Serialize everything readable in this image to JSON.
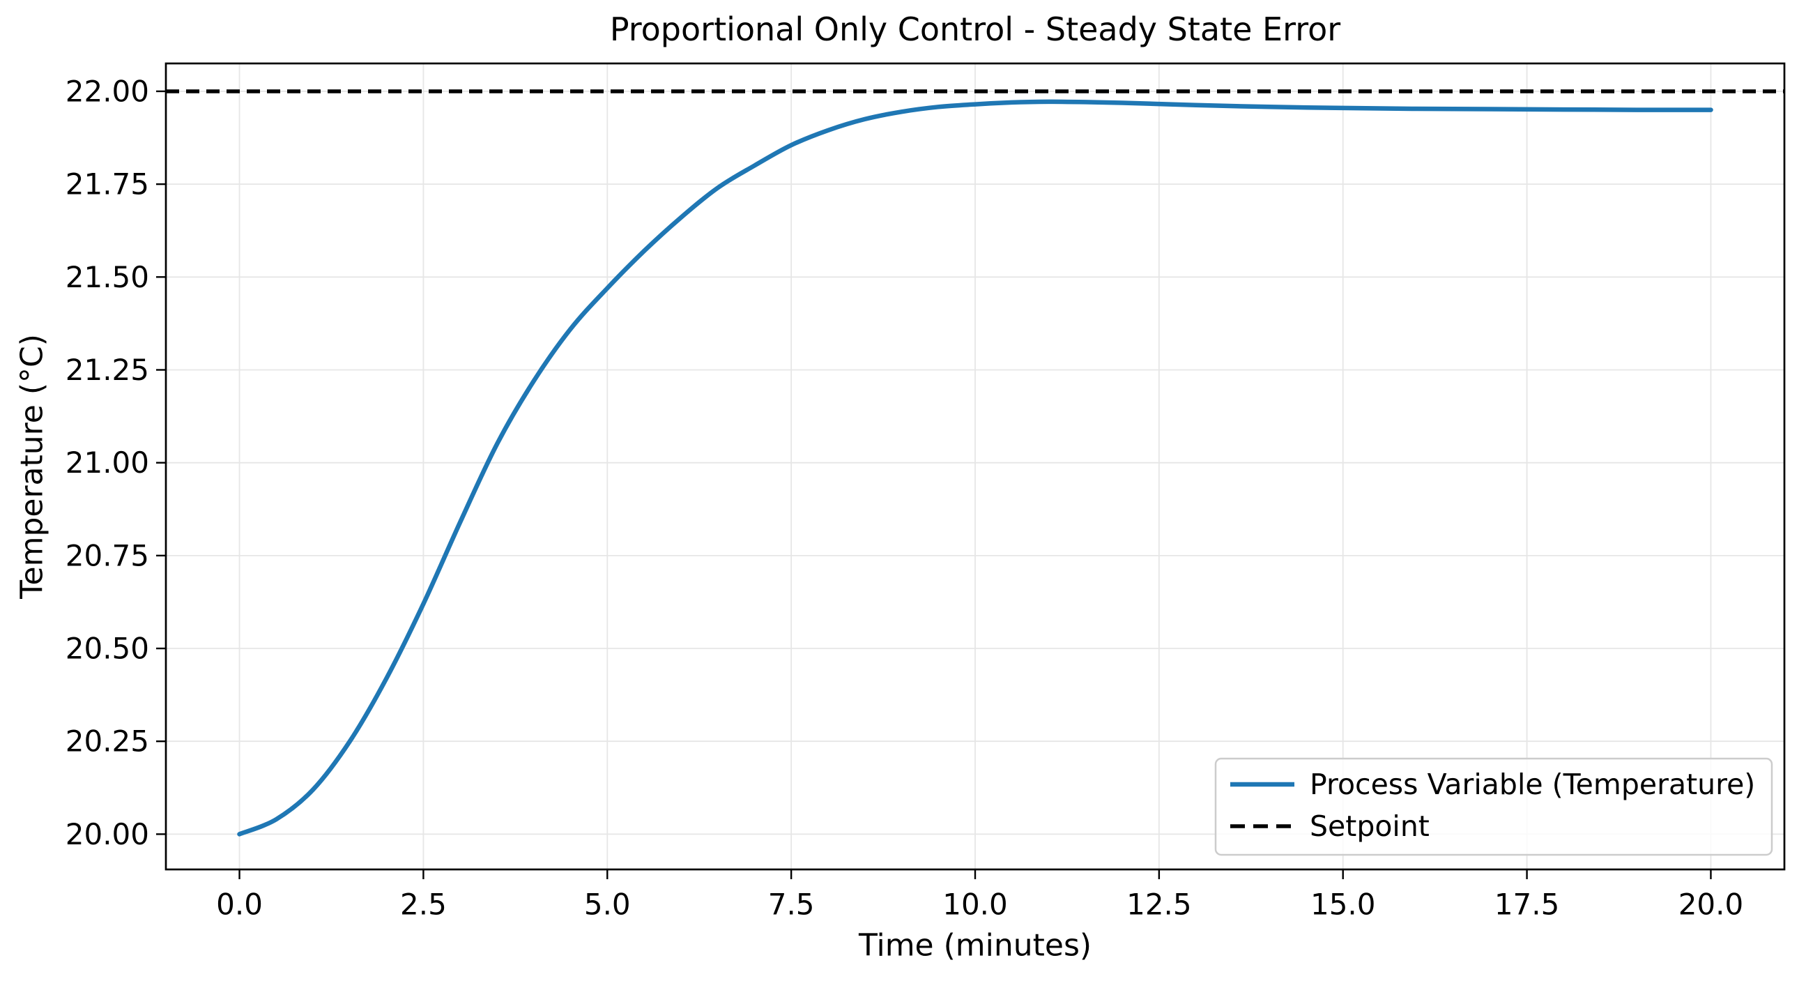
{
  "chart_data": {
    "type": "line",
    "title": "Proportional Only Control - Steady State Error",
    "xlabel": "Time (minutes)",
    "ylabel": "Temperature (°C)",
    "xlim": [
      -1.0,
      21.0
    ],
    "ylim": [
      19.905,
      22.075
    ],
    "grid": true,
    "grid_color": "#e6e6e6",
    "background": "#ffffff",
    "x_ticks": {
      "values": [
        0.0,
        2.5,
        5.0,
        7.5,
        10.0,
        12.5,
        15.0,
        17.5,
        20.0
      ],
      "labels": [
        "0.0",
        "2.5",
        "5.0",
        "7.5",
        "10.0",
        "12.5",
        "15.0",
        "17.5",
        "20.0"
      ]
    },
    "y_ticks": {
      "values": [
        20.0,
        20.25,
        20.5,
        20.75,
        21.0,
        21.25,
        21.5,
        21.75,
        22.0
      ],
      "labels": [
        "20.00",
        "20.25",
        "20.50",
        "20.75",
        "21.00",
        "21.25",
        "21.50",
        "21.75",
        "22.00"
      ]
    },
    "legend": {
      "position": "lower right",
      "frame_color": "#cccccc",
      "entries": [
        "Process Variable (Temperature)",
        "Setpoint"
      ]
    },
    "setpoint_value": 22.0,
    "steady_state_value": 21.95,
    "series": [
      {
        "name": "Process Variable (Temperature)",
        "style": "solid",
        "color": "#1f77b4",
        "linewidth": 6.5,
        "x": [
          0.0,
          0.5,
          1.0,
          1.5,
          2.0,
          2.5,
          3.0,
          3.5,
          4.0,
          4.5,
          5.0,
          5.5,
          6.0,
          6.5,
          7.0,
          7.5,
          8.0,
          8.5,
          9.0,
          9.5,
          10.0,
          10.5,
          11.0,
          11.5,
          12.0,
          12.5,
          13.0,
          14.0,
          15.0,
          16.0,
          17.0,
          18.0,
          19.0,
          20.0
        ],
        "y": [
          20.0,
          20.04,
          20.12,
          20.25,
          20.42,
          20.62,
          20.84,
          21.05,
          21.22,
          21.36,
          21.47,
          21.57,
          21.66,
          21.74,
          21.8,
          21.855,
          21.895,
          21.925,
          21.945,
          21.958,
          21.965,
          21.97,
          21.972,
          21.971,
          21.969,
          21.966,
          21.963,
          21.958,
          21.955,
          21.953,
          21.952,
          21.951,
          21.95,
          21.95
        ]
      },
      {
        "name": "Setpoint",
        "style": "dashed",
        "color": "#000000",
        "linewidth": 5.5,
        "y_value": 22.0
      }
    ]
  }
}
